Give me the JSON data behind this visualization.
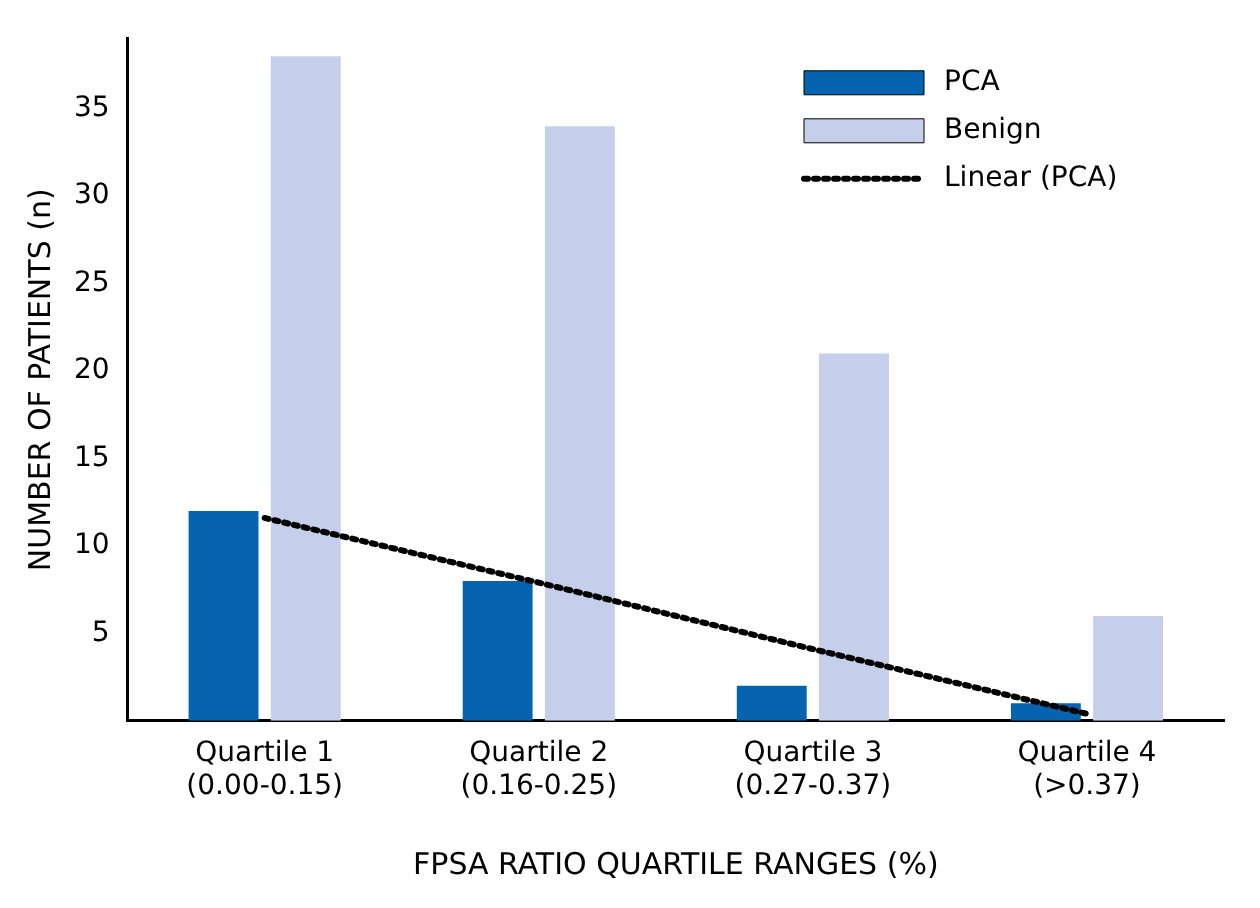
{
  "chart_data": {
    "type": "bar",
    "xlabel": "FPSA RATIO QUARTILE RANGES (%)",
    "ylabel": "NUMBER OF PATIENTS (n)",
    "categories": [
      "Quartile 1\n(0.00-0.15)",
      "Quartile 2\n(0.16-0.25)",
      "Quartile 3\n(0.27-0.37)",
      "Quartile 4\n(>0.37)"
    ],
    "series": [
      {
        "name": "PCA",
        "color": "#0563b0",
        "values": [
          12,
          8,
          2,
          1
        ]
      },
      {
        "name": "Benign",
        "color": "#c5cfeb",
        "values": [
          38,
          34,
          21,
          6
        ]
      },
      {
        "name": "Linear (PCA)",
        "type": "line",
        "color": "#000000",
        "line_style": "dotted",
        "marker": "none",
        "values": [
          11.6,
          7.9,
          4.1,
          0.4
        ]
      }
    ],
    "ylim": [
      0,
      39
    ],
    "yticks": [
      5,
      10,
      15,
      20,
      25,
      30,
      35
    ],
    "grid": false,
    "legend": "top right"
  }
}
